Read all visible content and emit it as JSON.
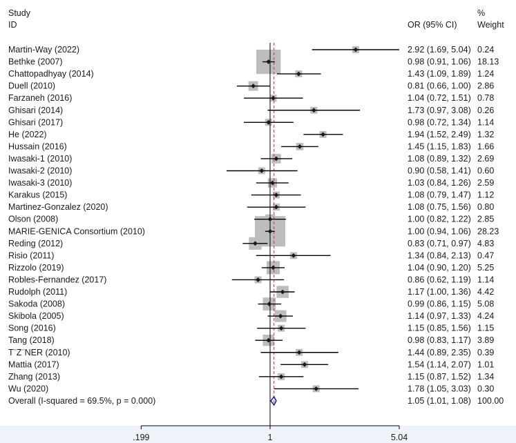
{
  "headers": {
    "study": "Study",
    "id": "ID",
    "or": "OR (95% CI)",
    "pct": "%",
    "weight": "Weight"
  },
  "chart_data": {
    "type": "forest",
    "scale": "log",
    "x_ticks": [
      {
        "value": 0.199,
        "label": ".199"
      },
      {
        "value": 1,
        "label": "1"
      },
      {
        "value": 5.04,
        "label": "5.04"
      }
    ],
    "null_line": 1,
    "overall_line": 1.05,
    "studies": [
      {
        "name": "Martin-Way (2022)",
        "or": 2.92,
        "lo": 1.69,
        "hi": 5.04,
        "ci_text": "2.92 (1.69, 5.04)",
        "weight": 0.24,
        "weight_text": "0.24"
      },
      {
        "name": "Bethke (2007)",
        "or": 0.98,
        "lo": 0.91,
        "hi": 1.06,
        "ci_text": "0.98 (0.91, 1.06)",
        "weight": 18.13,
        "weight_text": "18.13"
      },
      {
        "name": "Chattopadhyay (2014)",
        "or": 1.43,
        "lo": 1.09,
        "hi": 1.89,
        "ci_text": "1.43 (1.09, 1.89)",
        "weight": 1.24,
        "weight_text": "1.24"
      },
      {
        "name": "Duell (2010)",
        "or": 0.81,
        "lo": 0.66,
        "hi": 1.0,
        "ci_text": "0.81 (0.66, 1.00)",
        "weight": 2.86,
        "weight_text": "2.86"
      },
      {
        "name": "Farzaneh (2016)",
        "or": 1.04,
        "lo": 0.72,
        "hi": 1.51,
        "ci_text": "1.04 (0.72, 1.51)",
        "weight": 0.78,
        "weight_text": "0.78"
      },
      {
        "name": "Ghisari (2014)",
        "or": 1.73,
        "lo": 0.97,
        "hi": 3.08,
        "ci_text": "1.73 (0.97, 3.08)",
        "weight": 0.26,
        "weight_text": "0.26"
      },
      {
        "name": "Ghisari (2017)",
        "or": 0.98,
        "lo": 0.72,
        "hi": 1.34,
        "ci_text": "0.98 (0.72, 1.34)",
        "weight": 1.14,
        "weight_text": "1.14"
      },
      {
        "name": "He (2022)",
        "or": 1.94,
        "lo": 1.52,
        "hi": 2.49,
        "ci_text": "1.94 (1.52, 2.49)",
        "weight": 1.32,
        "weight_text": "1.32"
      },
      {
        "name": "Hussain (2016)",
        "or": 1.45,
        "lo": 1.15,
        "hi": 1.83,
        "ci_text": "1.45 (1.15, 1.83)",
        "weight": 1.66,
        "weight_text": "1.66"
      },
      {
        "name": "Iwasaki-1 (2010)",
        "or": 1.08,
        "lo": 0.89,
        "hi": 1.32,
        "ci_text": "1.08 (0.89, 1.32)",
        "weight": 2.69,
        "weight_text": "2.69"
      },
      {
        "name": "Iwasaki-2 (2010)",
        "or": 0.9,
        "lo": 0.58,
        "hi": 1.41,
        "ci_text": "0.90 (0.58, 1.41)",
        "weight": 0.6,
        "weight_text": "0.60"
      },
      {
        "name": "Iwasaki-3 (2010)",
        "or": 1.03,
        "lo": 0.84,
        "hi": 1.26,
        "ci_text": "1.03 (0.84, 1.26)",
        "weight": 2.59,
        "weight_text": "2.59"
      },
      {
        "name": "Karakus (2015)",
        "or": 1.08,
        "lo": 0.79,
        "hi": 1.47,
        "ci_text": "1.08 (0.79, 1.47)",
        "weight": 1.12,
        "weight_text": "1.12"
      },
      {
        "name": "Martinez-Gonzalez (2020)",
        "or": 1.08,
        "lo": 0.75,
        "hi": 1.56,
        "ci_text": "1.08 (0.75, 1.56)",
        "weight": 0.8,
        "weight_text": "0.80"
      },
      {
        "name": "Olson (2008)",
        "or": 1.0,
        "lo": 0.82,
        "hi": 1.22,
        "ci_text": "1.00 (0.82, 1.22)",
        "weight": 2.85,
        "weight_text": "2.85"
      },
      {
        "name": "MARIE-GENICA Consortium (2010)",
        "or": 1.0,
        "lo": 0.94,
        "hi": 1.06,
        "ci_text": "1.00 (0.94, 1.06)",
        "weight": 28.23,
        "weight_text": "28.23"
      },
      {
        "name": "Reding (2012)",
        "or": 0.83,
        "lo": 0.71,
        "hi": 0.97,
        "ci_text": "0.83 (0.71, 0.97)",
        "weight": 4.83,
        "weight_text": "4.83"
      },
      {
        "name": "Risio (2011)",
        "or": 1.34,
        "lo": 0.84,
        "hi": 2.13,
        "ci_text": "1.34 (0.84, 2.13)",
        "weight": 0.47,
        "weight_text": "0.47"
      },
      {
        "name": "Rizzolo (2019)",
        "or": 1.04,
        "lo": 0.9,
        "hi": 1.2,
        "ci_text": "1.04 (0.90, 1.20)",
        "weight": 5.25,
        "weight_text": "5.25"
      },
      {
        "name": "Robles-Fernandez (2017)",
        "or": 0.86,
        "lo": 0.62,
        "hi": 1.19,
        "ci_text": "0.86 (0.62, 1.19)",
        "weight": 1.14,
        "weight_text": "1.14"
      },
      {
        "name": "Rudolph (2011)",
        "or": 1.17,
        "lo": 1.0,
        "hi": 1.36,
        "ci_text": "1.17 (1.00, 1.36)",
        "weight": 4.42,
        "weight_text": "4.42"
      },
      {
        "name": "Sakoda (2008)",
        "or": 0.99,
        "lo": 0.86,
        "hi": 1.15,
        "ci_text": "0.99 (0.86, 1.15)",
        "weight": 5.08,
        "weight_text": "5.08"
      },
      {
        "name": "Skibola (2005)",
        "or": 1.14,
        "lo": 0.97,
        "hi": 1.33,
        "ci_text": "1.14 (0.97, 1.33)",
        "weight": 4.24,
        "weight_text": "4.24"
      },
      {
        "name": "Song (2016)",
        "or": 1.15,
        "lo": 0.85,
        "hi": 1.56,
        "ci_text": "1.15 (0.85, 1.56)",
        "weight": 1.15,
        "weight_text": "1.15"
      },
      {
        "name": "Tang (2018)",
        "or": 0.98,
        "lo": 0.83,
        "hi": 1.17,
        "ci_text": "0.98 (0.83, 1.17)",
        "weight": 3.89,
        "weight_text": "3.89"
      },
      {
        "name": "T¨Z¨NER (2010)",
        "or": 1.44,
        "lo": 0.89,
        "hi": 2.35,
        "ci_text": "1.44 (0.89, 2.35)",
        "weight": 0.39,
        "weight_text": "0.39"
      },
      {
        "name": "Mattia (2017)",
        "or": 1.54,
        "lo": 1.14,
        "hi": 2.07,
        "ci_text": "1.54 (1.14, 2.07)",
        "weight": 1.01,
        "weight_text": "1.01"
      },
      {
        "name": "Zhang (2013)",
        "or": 1.15,
        "lo": 0.87,
        "hi": 1.52,
        "ci_text": "1.15 (0.87, 1.52)",
        "weight": 1.34,
        "weight_text": "1.34"
      },
      {
        "name": "Wu (2020)",
        "or": 1.78,
        "lo": 1.05,
        "hi": 3.03,
        "ci_text": "1.78 (1.05, 3.03)",
        "weight": 0.3,
        "weight_text": "0.30"
      }
    ],
    "overall": {
      "name": "Overall  (I-squared = 69.5%, p = 0.000)",
      "or": 1.05,
      "lo": 1.01,
      "hi": 1.08,
      "ci_text": "1.05 (1.01, 1.08)",
      "weight_text": "100.00"
    },
    "colors": {
      "box": "#bdbdbd",
      "line": "#000000",
      "point": "#1a1a1a",
      "overall_diamond": "#1c1f8c",
      "overall_line": "#c0392b",
      "bottom_band": "#eef3f9"
    }
  }
}
